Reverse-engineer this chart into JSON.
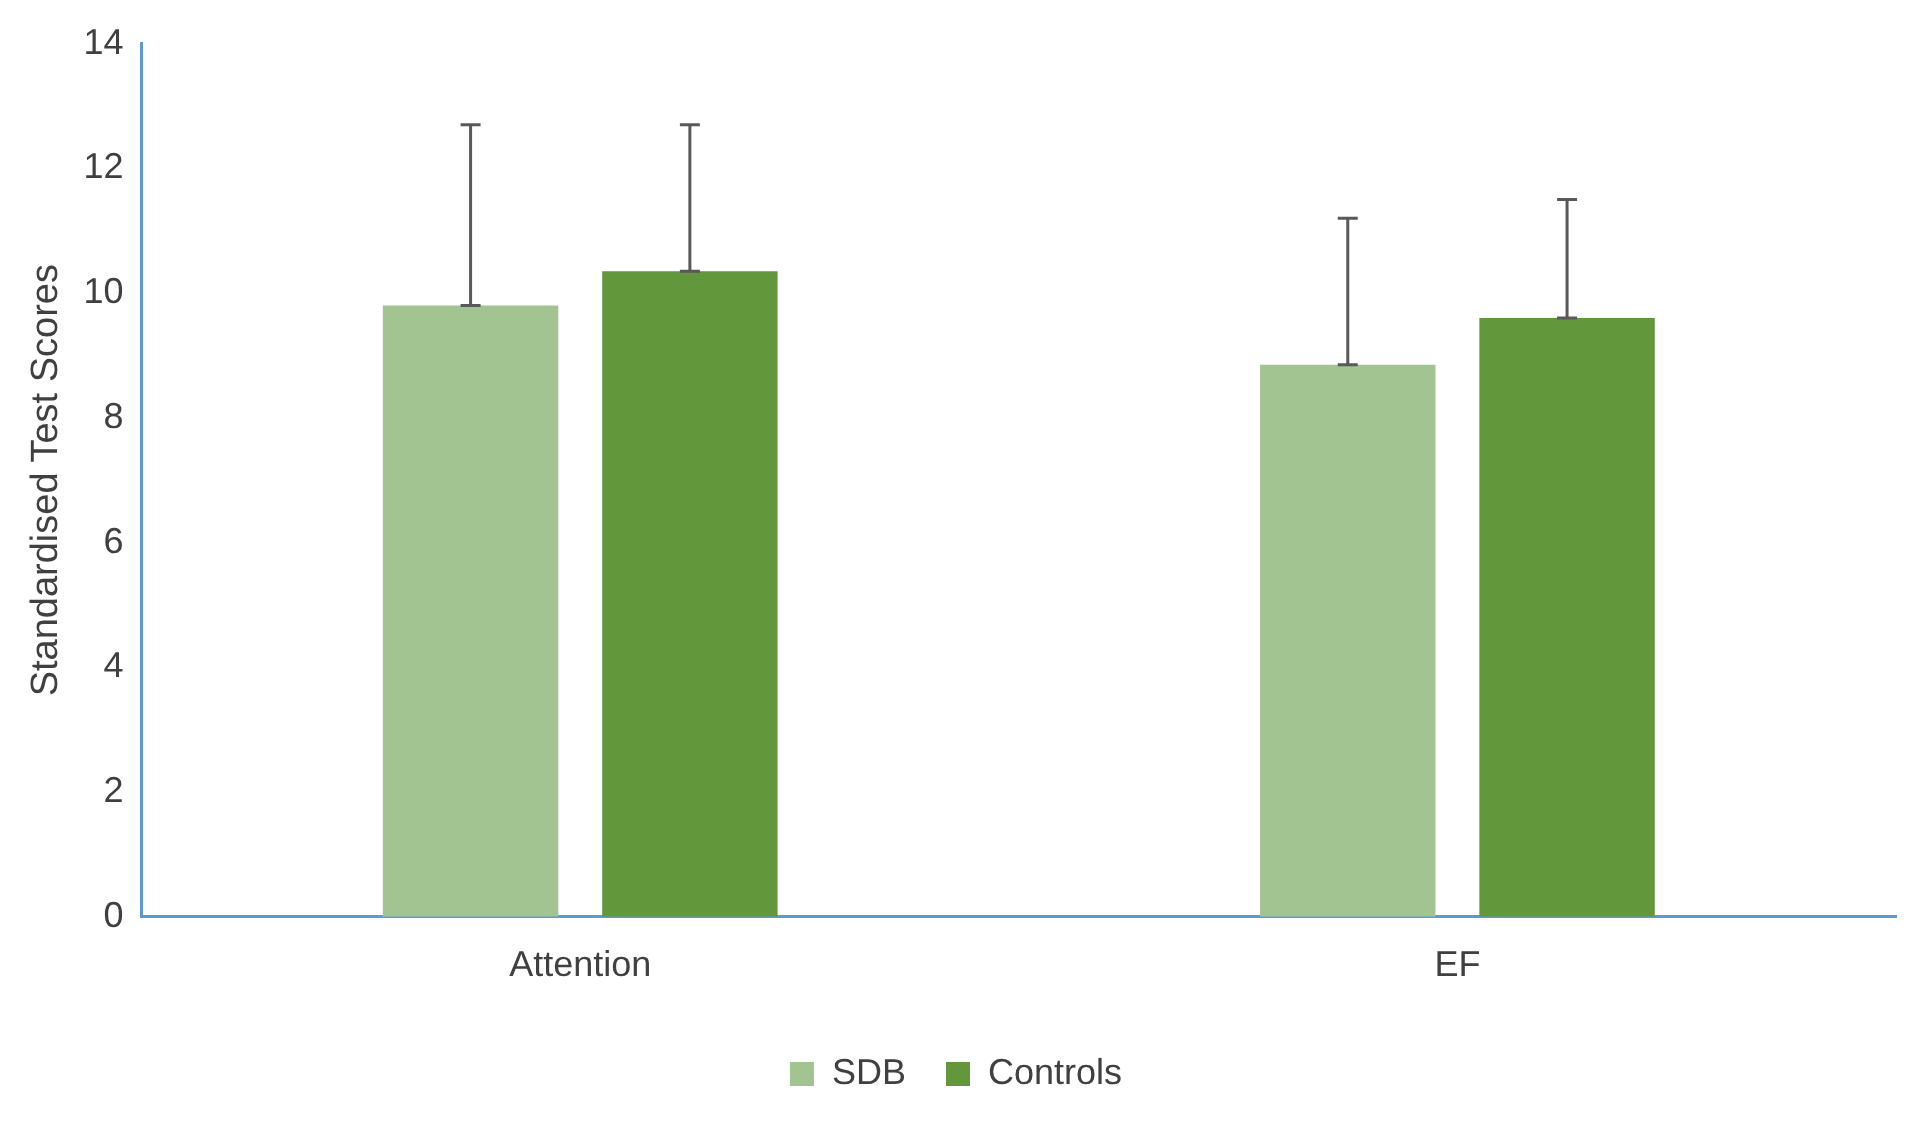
{
  "chart_data": {
    "type": "bar",
    "ylabel": "Standardised Test Scores",
    "categories": [
      "Attention",
      "EF"
    ],
    "series": [
      {
        "name": "SDB",
        "color": "#a1c490",
        "values": [
          9.8,
          8.85
        ],
        "errors": [
          [
            9.8,
            12.7
          ],
          [
            8.85,
            11.2
          ]
        ]
      },
      {
        "name": "Controls",
        "color": "#62973b",
        "values": [
          10.35,
          9.6
        ],
        "errors": [
          [
            10.35,
            12.7
          ],
          [
            9.6,
            11.5
          ]
        ]
      }
    ],
    "ylim": [
      0,
      14
    ],
    "yticks": [
      0,
      2,
      4,
      6,
      8,
      10,
      12,
      14
    ],
    "grid": false,
    "legend": "bottom"
  }
}
